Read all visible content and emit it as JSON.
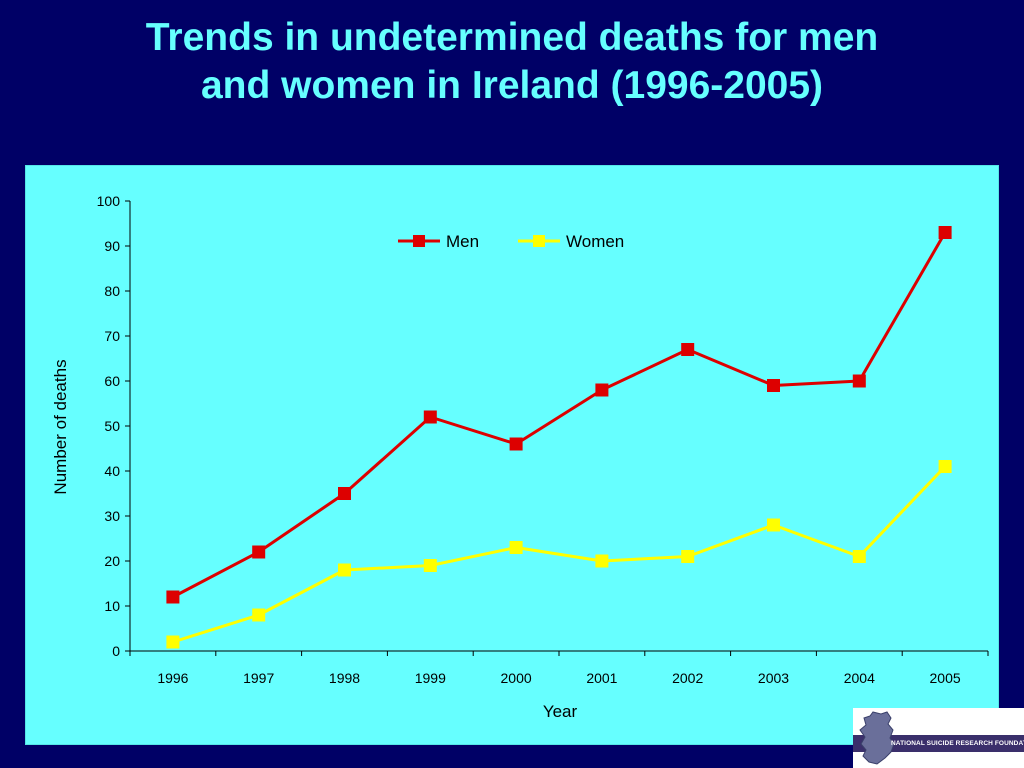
{
  "slide": {
    "title_line1": "Trends in undetermined deaths for men",
    "title_line2": "and women in Ireland (1996-2005)",
    "background_color": "#000066",
    "title_color": "#66ffff"
  },
  "chart_data": {
    "type": "line",
    "title": "",
    "xlabel": "Year",
    "ylabel": "Number of deaths",
    "categories": [
      "1996",
      "1997",
      "1998",
      "1999",
      "2000",
      "2001",
      "2002",
      "2003",
      "2004",
      "2005"
    ],
    "ylim": [
      0,
      100
    ],
    "yticks": [
      0,
      10,
      20,
      30,
      40,
      50,
      60,
      70,
      80,
      90,
      100
    ],
    "grid": false,
    "legend_position": "top-center",
    "plot_background": "#66ffff",
    "series": [
      {
        "name": "Men",
        "color": "#dd0000",
        "marker": "square",
        "values": [
          12,
          22,
          35,
          52,
          46,
          58,
          67,
          59,
          60,
          93
        ]
      },
      {
        "name": "Women",
        "color": "#ffff00",
        "marker": "square",
        "values": [
          2,
          8,
          18,
          19,
          23,
          20,
          21,
          28,
          21,
          41
        ]
      }
    ]
  },
  "logo": {
    "text": "NATIONAL SUICIDE RESEARCH FOUNDATION",
    "icon": "ireland-map-icon"
  }
}
